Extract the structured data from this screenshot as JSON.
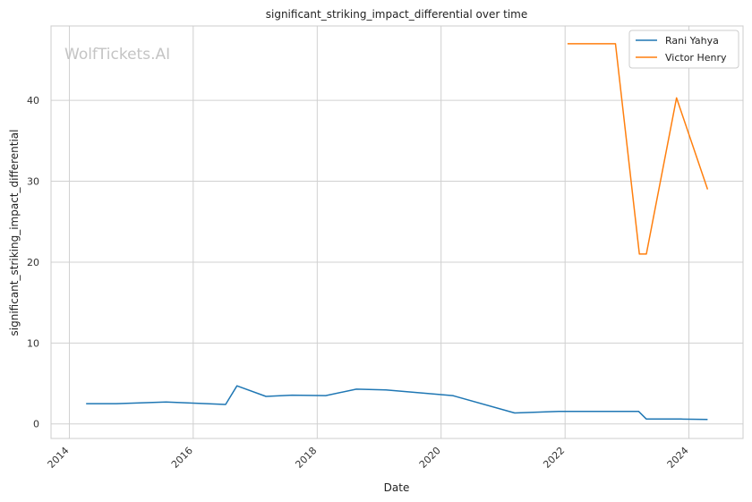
{
  "chart_data": {
    "type": "line",
    "title": "significant_striking_impact_differential over time",
    "xlabel": "Date",
    "ylabel": "significant_striking_impact_differential",
    "watermark": "WolfTickets.AI",
    "xlim": [
      "2013-09-15",
      "2024-11-15"
    ],
    "ylim": [
      -1.8,
      49.2
    ],
    "x_ticks": [
      "2014",
      "2016",
      "2018",
      "2020",
      "2022",
      "2024"
    ],
    "y_ticks": [
      0,
      10,
      20,
      30,
      40
    ],
    "grid": true,
    "legend_position": "top-right",
    "series": [
      {
        "name": "Rani Yahya",
        "color": "#1f77b4",
        "points": [
          {
            "x": "2014-04-10",
            "y": 2.5
          },
          {
            "x": "2014-10-05",
            "y": 2.5
          },
          {
            "x": "2015-07-25",
            "y": 2.7
          },
          {
            "x": "2016-07-10",
            "y": 2.4
          },
          {
            "x": "2016-09-15",
            "y": 4.7
          },
          {
            "x": "2017-03-05",
            "y": 3.4
          },
          {
            "x": "2017-08-05",
            "y": 3.55
          },
          {
            "x": "2018-02-20",
            "y": 3.5
          },
          {
            "x": "2018-08-20",
            "y": 4.3
          },
          {
            "x": "2019-02-10",
            "y": 4.2
          },
          {
            "x": "2020-03-10",
            "y": 3.5
          },
          {
            "x": "2021-03-10",
            "y": 1.35
          },
          {
            "x": "2021-11-25",
            "y": 1.55
          },
          {
            "x": "2023-03-10",
            "y": 1.55
          },
          {
            "x": "2023-04-25",
            "y": 0.6
          },
          {
            "x": "2023-11-15",
            "y": 0.6
          },
          {
            "x": "2024-04-20",
            "y": 0.55
          }
        ]
      },
      {
        "name": "Victor Henry",
        "color": "#ff7f0e",
        "points": [
          {
            "x": "2022-01-15",
            "y": 47.0
          },
          {
            "x": "2022-10-25",
            "y": 47.0
          },
          {
            "x": "2023-03-15",
            "y": 21.0
          },
          {
            "x": "2023-04-25",
            "y": 21.0
          },
          {
            "x": "2023-10-20",
            "y": 40.3
          },
          {
            "x": "2024-04-20",
            "y": 29.0
          }
        ]
      }
    ]
  }
}
